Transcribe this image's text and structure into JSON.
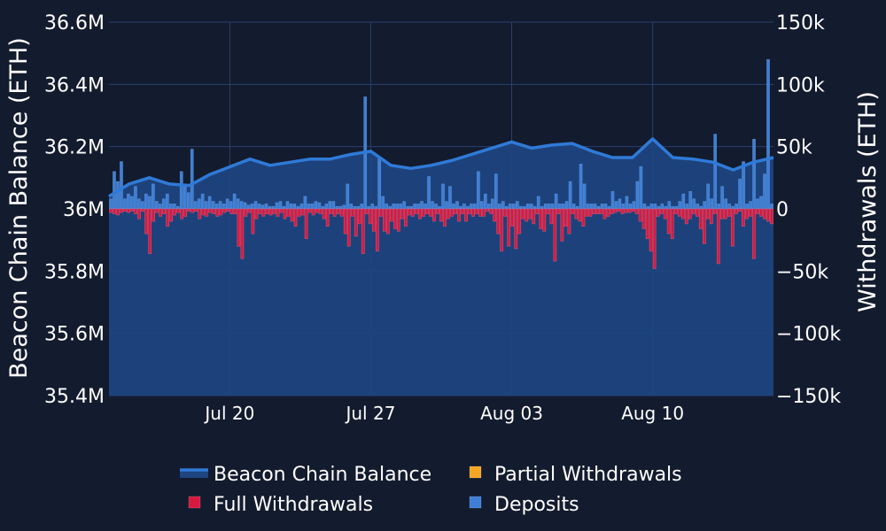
{
  "chart_data": {
    "type": "bar",
    "title": "",
    "ylabel_left": "Beacon Chain Balance (ETH)",
    "ylabel_right": "Withdrawals (ETH)",
    "ylim_left": [
      35400000,
      36600000
    ],
    "ylim_right": [
      -150000,
      150000
    ],
    "yticks_left": [
      "35.4M",
      "35.6M",
      "35.8M",
      "36M",
      "36.2M",
      "36.4M",
      "36.6M"
    ],
    "yticks_right": [
      "−150k",
      "−100k",
      "−50k",
      "0",
      "50k",
      "100k",
      "150k"
    ],
    "x_start": "2023-07-14",
    "x_end": "2023-08-16",
    "xticks": [
      {
        "date": "2023-07-20",
        "label": "Jul 20"
      },
      {
        "date": "2023-07-27",
        "label": "Jul 27"
      },
      {
        "date": "2023-08-03",
        "label": "Aug 03"
      },
      {
        "date": "2023-08-10",
        "label": "Aug 10"
      }
    ],
    "colors": {
      "balance_line": "#2f7ad8",
      "balance_fill": "#1e4580",
      "full_withdrawals": "#d8193f",
      "partial_withdrawals": "#f5a623",
      "deposits": "#3d7fd6",
      "grid": "#2b3f6e",
      "background": "#131b2e"
    },
    "legend": [
      {
        "name": "Beacon Chain Balance",
        "type": "line",
        "color": "#2f7ad8"
      },
      {
        "name": "Partial Withdrawals",
        "type": "box",
        "color": "#f5a623"
      },
      {
        "name": "Full Withdrawals",
        "type": "box",
        "color": "#d8193f"
      },
      {
        "name": "Deposits",
        "type": "box",
        "color": "#3d7fd6"
      }
    ],
    "legend_placement": "bottom-center",
    "balance": {
      "name": "Beacon Chain Balance",
      "points": [
        [
          "2023-07-14",
          36040000
        ],
        [
          "2023-07-15",
          36080000
        ],
        [
          "2023-07-16",
          36100000
        ],
        [
          "2023-07-17",
          36080000
        ],
        [
          "2023-07-18",
          36075000
        ],
        [
          "2023-07-19",
          36110000
        ],
        [
          "2023-07-20",
          36135000
        ],
        [
          "2023-07-21",
          36160000
        ],
        [
          "2023-07-22",
          36140000
        ],
        [
          "2023-07-23",
          36150000
        ],
        [
          "2023-07-24",
          36160000
        ],
        [
          "2023-07-25",
          36160000
        ],
        [
          "2023-07-26",
          36175000
        ],
        [
          "2023-07-27",
          36185000
        ],
        [
          "2023-07-28",
          36140000
        ],
        [
          "2023-07-29",
          36130000
        ],
        [
          "2023-07-30",
          36140000
        ],
        [
          "2023-07-31",
          36155000
        ],
        [
          "2023-08-01",
          36175000
        ],
        [
          "2023-08-02",
          36195000
        ],
        [
          "2023-08-03",
          36215000
        ],
        [
          "2023-08-04",
          36195000
        ],
        [
          "2023-08-05",
          36205000
        ],
        [
          "2023-08-06",
          36210000
        ],
        [
          "2023-08-07",
          36185000
        ],
        [
          "2023-08-08",
          36165000
        ],
        [
          "2023-08-09",
          36165000
        ],
        [
          "2023-08-10",
          36225000
        ],
        [
          "2023-08-11",
          36165000
        ],
        [
          "2023-08-12",
          36160000
        ],
        [
          "2023-08-13",
          36150000
        ],
        [
          "2023-08-14",
          36125000
        ],
        [
          "2023-08-15",
          36150000
        ],
        [
          "2023-08-16",
          36165000
        ]
      ]
    },
    "series": [
      {
        "name": "Deposits",
        "color": "#3d7fd6",
        "values": [
          8000,
          30000,
          22000,
          38000,
          8000,
          12000,
          10000,
          18000,
          8000,
          6000,
          12000,
          10000,
          20000,
          6000,
          4000,
          8000,
          12000,
          4000,
          4000,
          2000,
          30000,
          20000,
          13000,
          48000,
          6000,
          8000,
          12000,
          6000,
          10000,
          6000,
          4000,
          6000,
          4000,
          8000,
          6000,
          12000,
          8000,
          6000,
          5000,
          3000,
          4000,
          6000,
          4000,
          3000,
          4000,
          2000,
          2000,
          5000,
          6000,
          2000,
          6000,
          4000,
          4000,
          2000,
          4000,
          10000,
          4000,
          4000,
          6000,
          5000,
          2000,
          4000,
          6000,
          6000,
          2000,
          2000,
          3000,
          20000,
          4000,
          2000,
          2000,
          4000,
          90000,
          2000,
          4000,
          2000,
          42000,
          10000,
          4000,
          2000,
          4000,
          4000,
          4000,
          6000,
          2000,
          2000,
          4000,
          4000,
          6000,
          4000,
          26000,
          6000,
          4000,
          2000,
          20000,
          6000,
          18000,
          4000,
          6000,
          2000,
          4000,
          2000,
          4000,
          4000,
          30000,
          6000,
          12000,
          4000,
          8000,
          28000,
          4000,
          6000,
          2000,
          4000,
          4000,
          6000,
          2000,
          2000,
          4000,
          4000,
          2000,
          10000,
          2000,
          4000,
          4000,
          4000,
          12000,
          4000,
          4000,
          6000,
          22000,
          4000,
          2000,
          36000,
          20000,
          4000,
          4000,
          4000,
          2000,
          4000,
          4000,
          2000,
          14000,
          6000,
          8000,
          4000,
          10000,
          4000,
          6000,
          22000,
          34000,
          4000,
          2000,
          4000,
          4000,
          2000,
          4000,
          2000,
          6000,
          2000,
          2000,
          6000,
          12000,
          4000,
          14000,
          8000,
          4000,
          2000,
          6000,
          20000,
          8000,
          60000,
          4000,
          18000,
          8000,
          4000,
          2000,
          4000,
          24000,
          38000,
          4000,
          6000,
          56000,
          8000,
          10000,
          28000,
          120000,
          4000
        ]
      },
      {
        "name": "Full Withdrawals",
        "color": "#d8193f",
        "values": [
          -3000,
          -4000,
          -5000,
          -3000,
          -2000,
          -3000,
          -2000,
          -4000,
          -8000,
          -2000,
          -20000,
          -36000,
          -10000,
          -3000,
          -6000,
          -4000,
          -14000,
          -10000,
          -5000,
          -3000,
          -8000,
          -6000,
          -2000,
          -3000,
          -2000,
          -8000,
          -5000,
          -6000,
          -3000,
          -4000,
          -6000,
          -5000,
          -3000,
          -2000,
          -4000,
          -4000,
          -30000,
          -40000,
          -6000,
          -3000,
          -20000,
          -8000,
          -4000,
          -6000,
          -4000,
          -5000,
          -4000,
          -6000,
          -3000,
          -8000,
          -6000,
          -10000,
          -14000,
          -6000,
          -5000,
          -24000,
          -3000,
          -5000,
          -3000,
          -4000,
          -8000,
          -14000,
          -4000,
          -6000,
          -4000,
          -6000,
          -20000,
          -30000,
          -6000,
          -22000,
          -12000,
          -36000,
          -4000,
          -12000,
          -18000,
          -34000,
          -6000,
          -18000,
          -20000,
          -10000,
          -16000,
          -18000,
          -8000,
          -14000,
          -5000,
          -6000,
          -4000,
          -8000,
          -6000,
          -4000,
          -6000,
          -10000,
          -4000,
          -10000,
          -14000,
          -8000,
          -6000,
          -4000,
          -10000,
          -4000,
          -10000,
          -4000,
          -6000,
          -4000,
          -6000,
          -6000,
          -2000,
          -4000,
          -10000,
          -20000,
          -34000,
          -6000,
          -30000,
          -14000,
          -32000,
          -20000,
          -8000,
          -10000,
          -8000,
          -12000,
          -4000,
          -16000,
          -18000,
          -4000,
          -12000,
          -42000,
          -4000,
          -26000,
          -14000,
          -20000,
          -4000,
          -8000,
          -10000,
          -14000,
          -6000,
          -6000,
          -4000,
          -4000,
          -4000,
          -8000,
          -6000,
          -4000,
          -3000,
          -2000,
          -4000,
          -3000,
          -3000,
          -2000,
          -4000,
          -10000,
          -16000,
          -24000,
          -34000,
          -48000,
          -6000,
          -4000,
          -8000,
          -20000,
          -24000,
          -4000,
          -6000,
          -8000,
          -12000,
          -8000,
          -4000,
          -6000,
          -16000,
          -28000,
          -8000,
          -12000,
          -4000,
          -44000,
          -8000,
          -8000,
          -6000,
          -30000,
          -4000,
          -2000,
          -14000,
          -8000,
          -6000,
          -40000,
          -4000,
          -6000,
          -8000,
          -10000,
          -12000
        ]
      },
      {
        "name": "Partial Withdrawals",
        "color": "#f5a623",
        "values": []
      }
    ]
  }
}
